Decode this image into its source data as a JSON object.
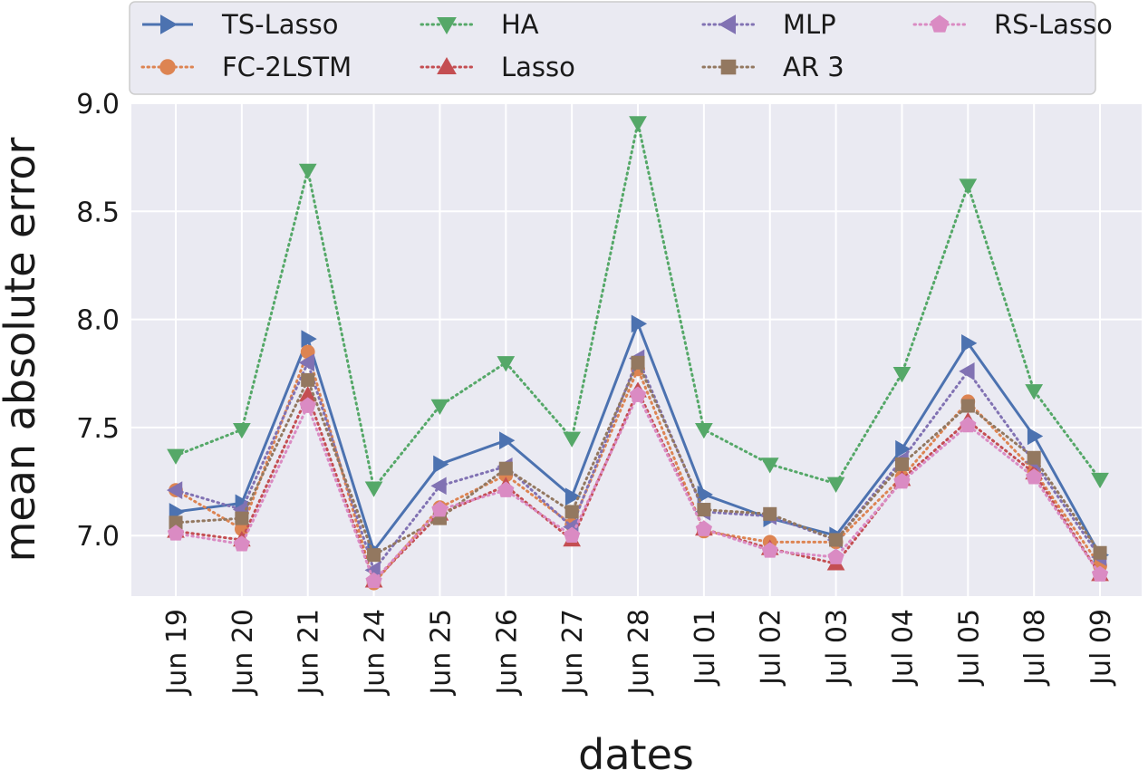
{
  "chart_data": {
    "type": "line",
    "title": "",
    "xlabel": "dates",
    "ylabel": "mean absolute error",
    "categories": [
      "Jun 19",
      "Jun 20",
      "Jun 21",
      "Jun 24",
      "Jun 25",
      "Jun 26",
      "Jun 27",
      "Jun 28",
      "Jul 01",
      "Jul 02",
      "Jul 03",
      "Jul 04",
      "Jul 05",
      "Jul 08",
      "Jul 09"
    ],
    "ylim": [
      6.72,
      9.0
    ],
    "yticks": [
      7.0,
      7.5,
      8.0,
      8.5,
      9.0
    ],
    "ytick_labels": [
      "7.0",
      "7.5",
      "8.0",
      "8.5",
      "9.0"
    ],
    "grid": true,
    "legend_position": "top",
    "series": [
      {
        "name": "TS-Lasso",
        "color": "#4c72b0",
        "style": "solid",
        "marker": "triangle-right",
        "values": [
          7.11,
          7.15,
          7.91,
          6.93,
          7.33,
          7.44,
          7.18,
          7.98,
          7.19,
          7.08,
          7.0,
          7.4,
          7.89,
          7.46,
          6.91
        ]
      },
      {
        "name": "FC-2LSTM",
        "color": "#dd8452",
        "style": "dotted",
        "marker": "circle",
        "values": [
          7.21,
          7.03,
          7.85,
          6.78,
          7.13,
          7.28,
          7.05,
          7.77,
          7.02,
          6.97,
          6.97,
          7.27,
          7.62,
          7.3,
          6.86
        ]
      },
      {
        "name": "HA",
        "color": "#55a868",
        "style": "dotted",
        "marker": "triangle-down",
        "values": [
          7.37,
          7.49,
          8.69,
          7.22,
          7.6,
          7.8,
          7.45,
          8.91,
          7.49,
          7.33,
          7.24,
          7.75,
          8.62,
          7.67,
          7.26
        ]
      },
      {
        "name": "Lasso",
        "color": "#c44e52",
        "style": "dotted",
        "marker": "triangle-up",
        "values": [
          7.02,
          6.98,
          7.65,
          6.79,
          7.1,
          7.23,
          6.98,
          7.67,
          7.03,
          6.94,
          6.87,
          7.26,
          7.53,
          7.29,
          6.82
        ]
      },
      {
        "name": "MLP",
        "color": "#8172b3",
        "style": "dotted",
        "marker": "triangle-left",
        "values": [
          7.21,
          7.12,
          7.8,
          6.84,
          7.23,
          7.32,
          7.04,
          7.82,
          7.11,
          7.09,
          6.98,
          7.35,
          7.76,
          7.34,
          6.9
        ]
      },
      {
        "name": "AR 3",
        "color": "#937860",
        "style": "dotted",
        "marker": "square",
        "values": [
          7.06,
          7.08,
          7.72,
          6.91,
          7.08,
          7.31,
          7.11,
          7.8,
          7.12,
          7.1,
          6.98,
          7.33,
          7.6,
          7.36,
          6.92
        ]
      },
      {
        "name": "RS-Lasso",
        "color": "#da8bc3",
        "style": "dotted",
        "marker": "pentagon",
        "values": [
          7.01,
          6.96,
          7.6,
          6.79,
          7.12,
          7.21,
          7.0,
          7.65,
          7.03,
          6.93,
          6.9,
          7.25,
          7.51,
          7.27,
          6.82
        ]
      }
    ]
  }
}
